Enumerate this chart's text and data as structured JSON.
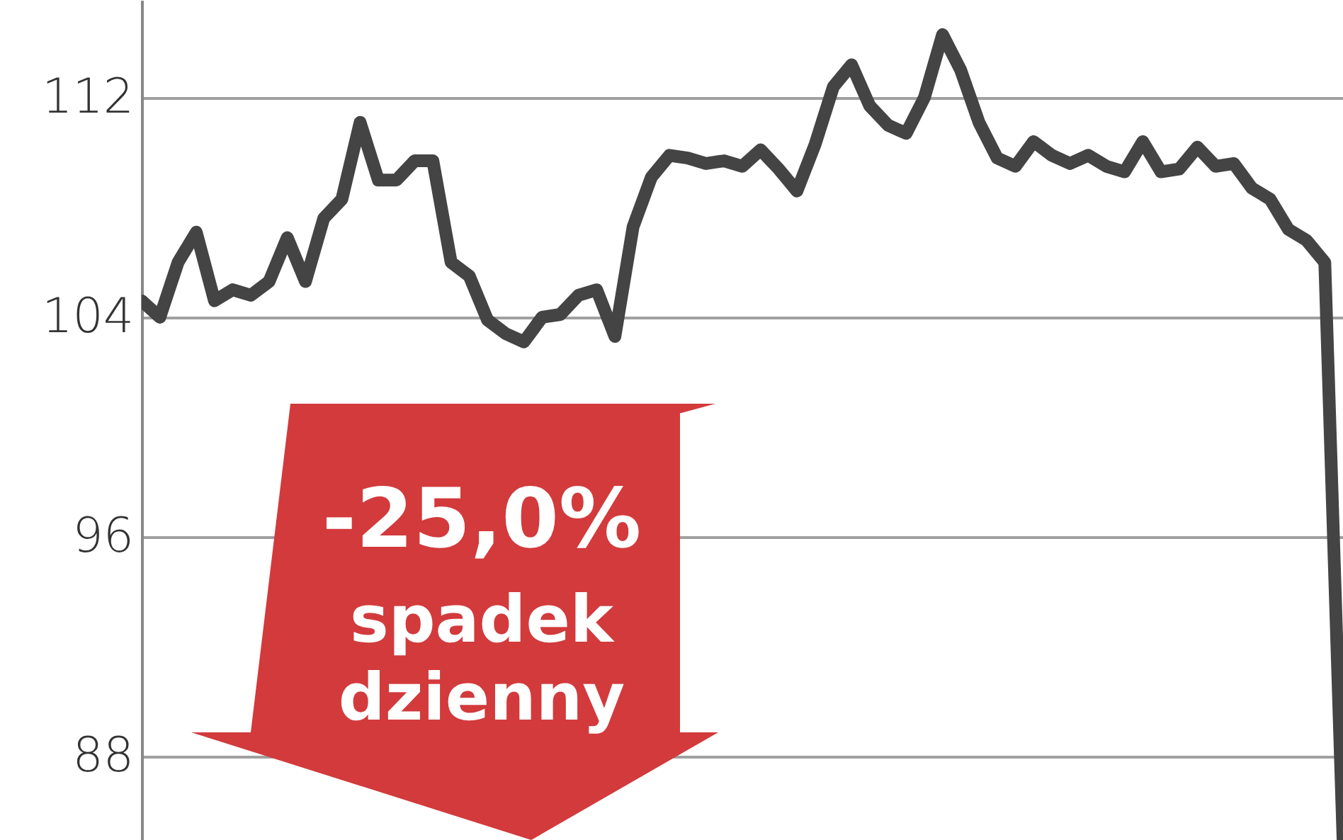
{
  "chart_data": {
    "type": "line",
    "categories": [
      null,
      null,
      null,
      null,
      null,
      null,
      null,
      null,
      null,
      null,
      null,
      null,
      null,
      null,
      null,
      null,
      null,
      null,
      null,
      null,
      null,
      null,
      null,
      null,
      null,
      null,
      null,
      null,
      null,
      null,
      null,
      null,
      null,
      null,
      null,
      null,
      null,
      null,
      null,
      null,
      null,
      null,
      null,
      null,
      null,
      null,
      null,
      null,
      null,
      null,
      null,
      null,
      null,
      null,
      null,
      null,
      null,
      null,
      null,
      null,
      null,
      null,
      null,
      null,
      null,
      null,
      null
    ],
    "series": [
      {
        "color": "#444444",
        "values": [
          104.6,
          104.0,
          106.0,
          107.1,
          104.6,
          105.0,
          104.8,
          105.3,
          106.9,
          105.3,
          107.6,
          108.3,
          111.1,
          109.0,
          109.0,
          109.7,
          109.7,
          106.0,
          105.5,
          103.9,
          103.4,
          103.1,
          104.0,
          104.1,
          104.8,
          105.0,
          103.3,
          107.3,
          109.1,
          109.9,
          109.8,
          109.6,
          109.7,
          109.5,
          110.1,
          109.4,
          108.6,
          110.3,
          112.4,
          113.2,
          111.7,
          111.0,
          110.7,
          112.0,
          114.3,
          113.0,
          111.1,
          109.8,
          109.5,
          110.4,
          109.9,
          109.6,
          109.9,
          109.5,
          109.3,
          110.4,
          109.3,
          109.4,
          110.2,
          109.5,
          109.6,
          108.7,
          108.3,
          107.2,
          106.8,
          106.0,
          85.0
        ]
      }
    ],
    "ylim": [
      84.95,
      115.56
    ],
    "yticks": [
      88,
      96,
      104,
      112
    ],
    "grid": "y",
    "annotations": [
      "-25,0%",
      "spadek dzienny"
    ]
  }
}
